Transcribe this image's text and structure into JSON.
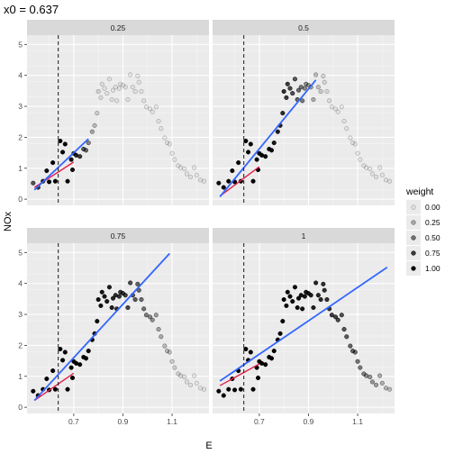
{
  "chart_data": {
    "type": "scatter",
    "title": "x0 =  0.637",
    "xlabel": "E",
    "ylabel": "NOx",
    "xlim": [
      0.51,
      1.25
    ],
    "ylim": [
      -0.2,
      5.3
    ],
    "x_ticks": [
      0.7,
      0.9,
      1.1
    ],
    "x_tick_labels": [
      "0.7",
      "0.9",
      "1.1"
    ],
    "y_ticks": [
      0,
      1,
      2,
      3,
      4,
      5
    ],
    "y_tick_labels": [
      "0",
      "1",
      "2",
      "3",
      "4",
      "5"
    ],
    "x0": 0.637,
    "grid": true,
    "legend": {
      "title": "weight",
      "placement": "right",
      "entries": [
        {
          "label": "0.00",
          "value": 0.0
        },
        {
          "label": "0.25",
          "value": 0.25
        },
        {
          "label": "0.50",
          "value": 0.5
        },
        {
          "label": "0.75",
          "value": 0.75
        },
        {
          "label": "1.00",
          "value": 1.0
        }
      ]
    },
    "panels": [
      {
        "label": "0.25",
        "span": 0.25,
        "fit": {
          "x": [
            0.54,
            0.76
          ],
          "y": [
            0.3,
            1.95
          ]
        },
        "local": {
          "x": [
            0.54,
            0.7
          ],
          "y": [
            0.38,
            1.2
          ]
        }
      },
      {
        "label": "0.5",
        "span": 0.5,
        "fit": {
          "x": [
            0.54,
            0.93
          ],
          "y": [
            0.08,
            3.85
          ]
        },
        "local": {
          "x": [
            0.54,
            0.7
          ],
          "y": [
            0.1,
            1.05
          ]
        }
      },
      {
        "label": "0.75",
        "span": 0.75,
        "fit": {
          "x": [
            0.54,
            1.09
          ],
          "y": [
            0.22,
            4.97
          ]
        },
        "local": {
          "x": [
            0.54,
            0.7
          ],
          "y": [
            0.22,
            1.1
          ]
        }
      },
      {
        "label": "1",
        "span": 1,
        "fit": {
          "x": [
            0.54,
            1.22
          ],
          "y": [
            0.85,
            4.52
          ]
        },
        "local": {
          "x": [
            0.54,
            0.7
          ],
          "y": [
            0.7,
            1.4
          ]
        }
      }
    ],
    "points": [
      [
        0.535,
        0.52
      ],
      [
        0.555,
        0.38
      ],
      [
        0.575,
        0.58
      ],
      [
        0.59,
        0.92
      ],
      [
        0.6,
        0.56
      ],
      [
        0.615,
        1.18
      ],
      [
        0.625,
        0.58
      ],
      [
        0.645,
        1.88
      ],
      [
        0.655,
        1.52
      ],
      [
        0.665,
        1.78
      ],
      [
        0.675,
        0.58
      ],
      [
        0.69,
        1.28
      ],
      [
        0.695,
        0.95
      ],
      [
        0.7,
        1.48
      ],
      [
        0.71,
        1.42
      ],
      [
        0.725,
        1.38
      ],
      [
        0.74,
        1.62
      ],
      [
        0.75,
        1.58
      ],
      [
        0.76,
        1.82
      ],
      [
        0.775,
        2.18
      ],
      [
        0.785,
        2.38
      ],
      [
        0.795,
        2.78
      ],
      [
        0.8,
        3.48
      ],
      [
        0.81,
        3.28
      ],
      [
        0.815,
        3.72
      ],
      [
        0.825,
        3.58
      ],
      [
        0.835,
        3.42
      ],
      [
        0.845,
        3.88
      ],
      [
        0.855,
        3.22
      ],
      [
        0.86,
        3.52
      ],
      [
        0.87,
        3.62
      ],
      [
        0.875,
        3.18
      ],
      [
        0.885,
        3.58
      ],
      [
        0.89,
        3.72
      ],
      [
        0.9,
        3.68
      ],
      [
        0.91,
        3.62
      ],
      [
        0.92,
        3.22
      ],
      [
        0.93,
        4.02
      ],
      [
        0.94,
        3.62
      ],
      [
        0.95,
        3.48
      ],
      [
        0.96,
        3.98
      ],
      [
        0.965,
        3.78
      ],
      [
        0.975,
        3.48
      ],
      [
        0.985,
        3.18
      ],
      [
        0.995,
        2.98
      ],
      [
        1.01,
        2.92
      ],
      [
        1.02,
        2.82
      ],
      [
        1.035,
        2.98
      ],
      [
        1.045,
        2.52
      ],
      [
        1.055,
        2.28
      ],
      [
        1.07,
        1.98
      ],
      [
        1.08,
        1.82
      ],
      [
        1.09,
        1.78
      ],
      [
        1.1,
        1.48
      ],
      [
        1.11,
        1.28
      ],
      [
        1.125,
        1.08
      ],
      [
        1.135,
        1.02
      ],
      [
        1.15,
        0.98
      ],
      [
        1.16,
        0.82
      ],
      [
        1.175,
        0.72
      ],
      [
        1.19,
        1.02
      ],
      [
        1.2,
        0.78
      ],
      [
        1.215,
        0.62
      ],
      [
        1.23,
        0.58
      ]
    ]
  }
}
